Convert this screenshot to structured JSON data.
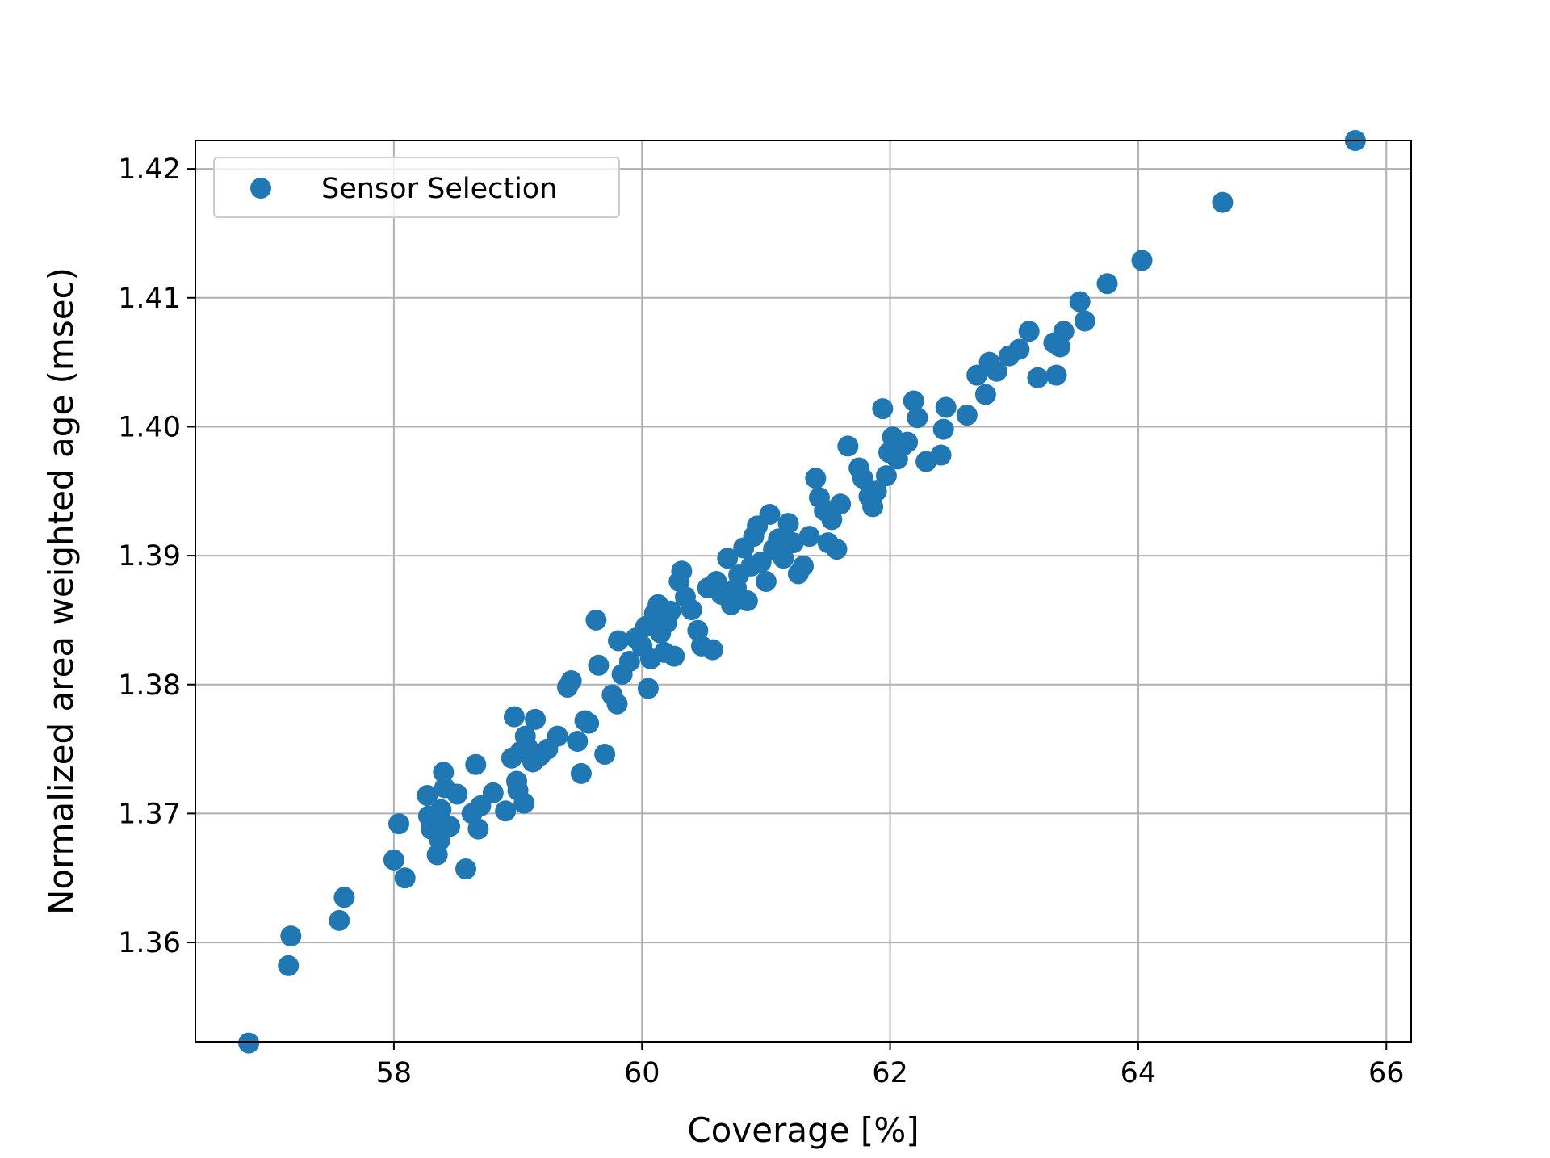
{
  "chart_data": {
    "type": "scatter",
    "title": "",
    "xlabel": "Coverage [%]",
    "ylabel": "Normalized area weighted age (msec)",
    "xlim": [
      56.4,
      66.2
    ],
    "ylim": [
      1.3523,
      1.4222
    ],
    "xticks": [
      58,
      60,
      62,
      64,
      66
    ],
    "xtick_labels": [
      "58",
      "60",
      "62",
      "64",
      "66"
    ],
    "yticks": [
      1.36,
      1.37,
      1.38,
      1.39,
      1.4,
      1.41,
      1.42
    ],
    "ytick_labels": [
      "1.36",
      "1.37",
      "1.38",
      "1.39",
      "1.40",
      "1.41",
      "1.42"
    ],
    "grid": true,
    "legend_position": "upper-left",
    "colors": {
      "series": "#1f77b4",
      "grid": "#b0b0b0",
      "axis": "#000000",
      "legend_border": "#cccccc"
    },
    "series": [
      {
        "name": "Sensor Selection",
        "marker": "circle",
        "x": [
          56.83,
          57.15,
          57.17,
          57.56,
          57.6,
          58.0,
          58.04,
          58.09,
          58.27,
          58.28,
          58.3,
          58.33,
          58.35,
          58.37,
          58.38,
          58.4,
          58.41,
          58.45,
          58.51,
          58.58,
          58.63,
          58.66,
          58.68,
          58.7,
          58.8,
          58.9,
          58.95,
          58.97,
          58.99,
          59.0,
          59.02,
          59.05,
          59.06,
          59.08,
          59.12,
          59.14,
          59.18,
          59.24,
          59.32,
          59.4,
          59.43,
          59.48,
          59.51,
          59.54,
          59.57,
          59.63,
          59.65,
          59.7,
          59.76,
          59.8,
          59.81,
          59.84,
          59.9,
          59.95,
          60.0,
          60.03,
          60.05,
          60.07,
          60.1,
          60.13,
          60.15,
          60.18,
          60.2,
          60.23,
          60.26,
          60.3,
          60.32,
          60.35,
          60.4,
          60.45,
          60.48,
          60.53,
          60.57,
          60.6,
          60.64,
          60.69,
          60.72,
          60.76,
          60.78,
          60.82,
          60.85,
          60.88,
          60.9,
          60.93,
          60.96,
          61.0,
          61.03,
          61.06,
          61.1,
          61.14,
          61.18,
          61.22,
          61.26,
          61.3,
          61.35,
          61.4,
          61.43,
          61.47,
          61.5,
          61.53,
          61.57,
          61.6,
          61.66,
          61.75,
          61.78,
          61.83,
          61.86,
          61.89,
          61.94,
          61.97,
          61.99,
          62.02,
          62.06,
          62.1,
          62.14,
          62.19,
          62.22,
          62.29,
          62.41,
          62.43,
          62.45,
          62.62,
          62.7,
          62.77,
          62.8,
          62.86,
          62.96,
          63.04,
          63.12,
          63.19,
          63.32,
          63.34,
          63.37,
          63.4,
          63.53,
          63.57,
          63.75,
          64.03,
          64.68,
          65.75
        ],
        "y": [
          1.3522,
          1.3582,
          1.3605,
          1.3617,
          1.3635,
          1.3664,
          1.3692,
          1.365,
          1.3714,
          1.3698,
          1.3688,
          1.3693,
          1.3668,
          1.3679,
          1.3703,
          1.3732,
          1.372,
          1.369,
          1.3715,
          1.3657,
          1.37,
          1.3738,
          1.3688,
          1.3706,
          1.3716,
          1.3702,
          1.3743,
          1.3775,
          1.3725,
          1.3718,
          1.3748,
          1.3708,
          1.376,
          1.3751,
          1.374,
          1.3773,
          1.3745,
          1.375,
          1.376,
          1.3798,
          1.3803,
          1.3756,
          1.3731,
          1.3772,
          1.377,
          1.385,
          1.3815,
          1.3746,
          1.3792,
          1.3785,
          1.3834,
          1.3808,
          1.3818,
          1.3836,
          1.383,
          1.3845,
          1.3797,
          1.382,
          1.3855,
          1.3862,
          1.384,
          1.3825,
          1.3848,
          1.3857,
          1.3822,
          1.388,
          1.3888,
          1.3868,
          1.3858,
          1.3842,
          1.383,
          1.3875,
          1.3827,
          1.388,
          1.387,
          1.3898,
          1.3862,
          1.3875,
          1.3885,
          1.3906,
          1.3865,
          1.3892,
          1.3915,
          1.3923,
          1.3895,
          1.388,
          1.3932,
          1.3905,
          1.3913,
          1.3898,
          1.3925,
          1.391,
          1.3886,
          1.3892,
          1.3915,
          1.396,
          1.3945,
          1.3935,
          1.391,
          1.3928,
          1.3905,
          1.394,
          1.3985,
          1.3968,
          1.396,
          1.3946,
          1.3938,
          1.395,
          1.4014,
          1.3962,
          1.398,
          1.3992,
          1.3975,
          1.3985,
          1.3988,
          1.402,
          1.4007,
          1.3973,
          1.3978,
          1.3998,
          1.4015,
          1.4009,
          1.404,
          1.4025,
          1.405,
          1.4043,
          1.4055,
          1.406,
          1.4074,
          1.4038,
          1.4065,
          1.404,
          1.4062,
          1.4074,
          1.4097,
          1.4082,
          1.4111,
          1.4129,
          1.4174,
          1.4222
        ]
      }
    ]
  }
}
